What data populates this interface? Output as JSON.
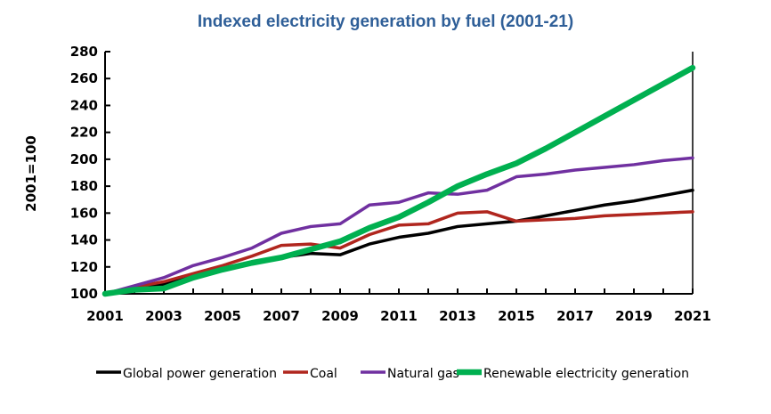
{
  "chart_data": {
    "type": "line",
    "title": "Indexed electricity generation by fuel (2001-21)",
    "xlabel": "",
    "ylabel": "2001=100",
    "x": [
      2001,
      2002,
      2003,
      2004,
      2005,
      2006,
      2007,
      2008,
      2009,
      2010,
      2011,
      2012,
      2013,
      2014,
      2015,
      2016,
      2017,
      2018,
      2019,
      2020,
      2021
    ],
    "xticks": [
      "2001",
      "2003",
      "2005",
      "2007",
      "2009",
      "2011",
      "2013",
      "2015",
      "2017",
      "2019",
      "2021"
    ],
    "yticks": [
      "100",
      "120",
      "140",
      "160",
      "180",
      "200",
      "220",
      "240",
      "260",
      "280"
    ],
    "ylim": [
      100,
      280
    ],
    "xlim": [
      2001,
      2021
    ],
    "grid": false,
    "legend": "bottom",
    "series": [
      {
        "name": "Global power generation",
        "color": "#000000",
        "values": [
          100,
          104,
          107,
          113,
          118,
          123,
          127,
          130,
          129,
          137,
          142,
          145,
          150,
          152,
          154,
          158,
          162,
          166,
          169,
          173,
          177
        ]
      },
      {
        "name": "Coal",
        "color": "#b0261e",
        "values": [
          100,
          105,
          109,
          115,
          121,
          128,
          136,
          137,
          134,
          144,
          151,
          152,
          160,
          161,
          154,
          155,
          156,
          158,
          159,
          160,
          161
        ]
      },
      {
        "name": "Natural gas",
        "color": "#7030a0",
        "values": [
          100,
          106,
          112,
          121,
          127,
          134,
          145,
          150,
          152,
          166,
          168,
          175,
          174,
          177,
          187,
          189,
          192,
          194,
          196,
          199,
          201
        ]
      },
      {
        "name": "Renewable electricity generation",
        "color": "#00b050",
        "values": [
          100,
          103,
          104,
          112,
          118,
          123,
          127,
          133,
          139,
          149,
          157,
          168,
          180,
          189,
          197,
          208,
          220,
          232,
          244,
          256,
          268
        ]
      }
    ]
  }
}
